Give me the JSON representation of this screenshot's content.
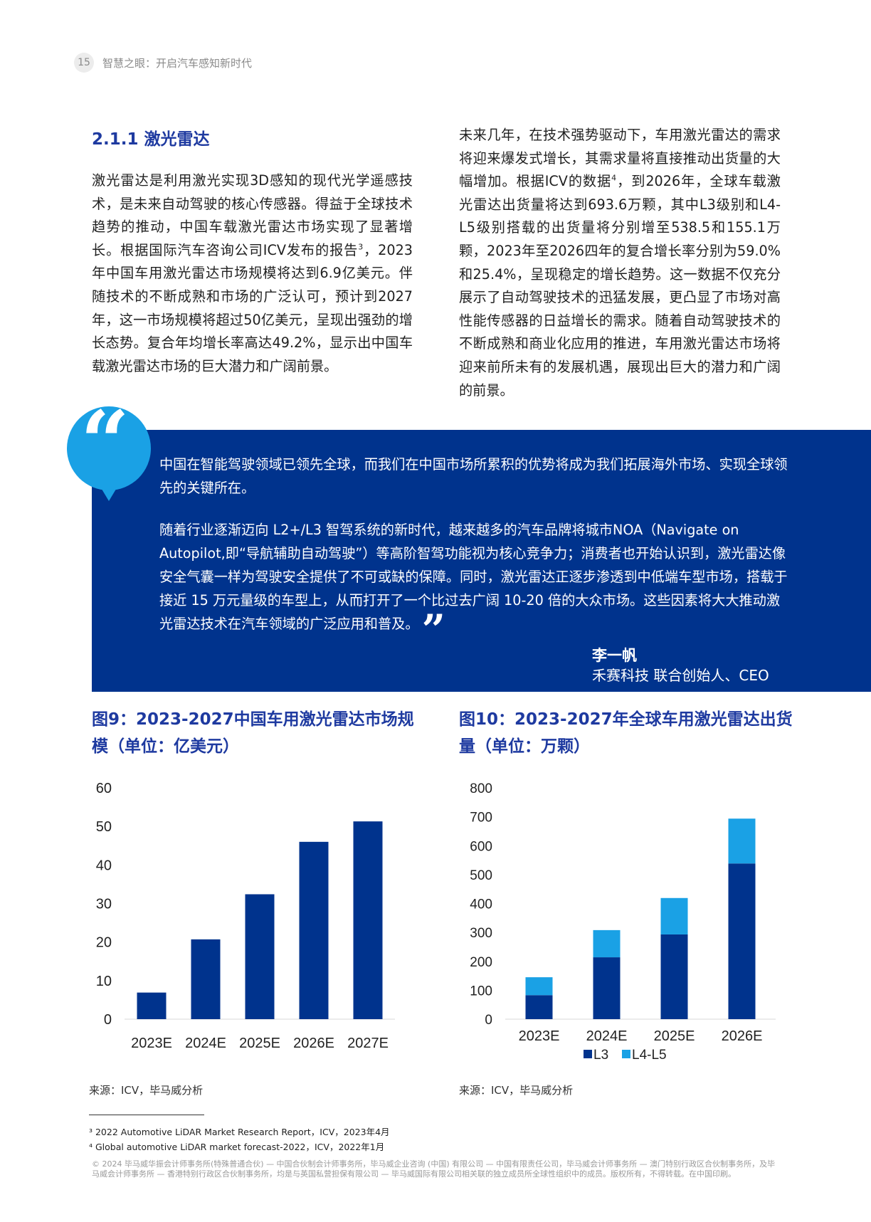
{
  "header": {
    "page_number": "15",
    "title": "智慧之眼：开启汽车感知新时代"
  },
  "section": {
    "title": "2.1.1 激光雷达",
    "left_paragraph": {
      "part1": "激光雷达是利用激光实现3D感知的现代光学遥感技术，是未来自动驾驶的核心传感器。得益于全球技术趋势的推动，中国车载激光雷达市场实现了显著增长。根据国际汽车咨询公司ICV发布的报告",
      "sup": "3",
      "part2": "，2023年中国车用激光雷达市场规模将达到6.9亿美元。伴随技术的不断成熟和市场的广泛认可，预计到2027年，这一市场规模将超过50亿美元，呈现出强劲的增长态势。复合年均增长率高达49.2%，显示出中国车载激光雷达市场的巨大潜力和广阔前景。"
    },
    "right_paragraph": {
      "part1": "未来几年，在技术强势驱动下，车用激光雷达的需求将迎来爆发式增长，其需求量将直接推动出货量的大幅增加。根据ICV的数据",
      "sup": "4",
      "part2": "，到2026年，全球车载激光雷达出货量将达到693.6万颗，其中L3级别和L4-L5级别搭载的出货量将分别增至538.5和155.1万颗，2023年至2026四年的复合增长率分别为59.0%和25.4%，呈现稳定的增长趋势。这一数据不仅充分展示了自动驾驶技术的迅猛发展，更凸显了市场对高性能传感器的日益增长的需求。随着自动驾驶技术的不断成熟和商业化应用的推进，车用激光雷达市场将迎来前所未有的发展机遇，展现出巨大的潜力和广阔的前景。"
    }
  },
  "quote": {
    "open_mark": "“",
    "close_mark": "”",
    "paragraph1": "中国在智能驾驶领域已领先全球，而我们在中国市场所累积的优势将成为我们拓展海外市场、实现全球领先的关键所在。",
    "paragraph2": "随着行业逐渐迈向 L2+/L3 智驾系统的新时代，越来越多的汽车品牌将城市NOA（Navigate on Autopilot,即“导航辅助自动驾驶”）等高阶智驾功能视为核心竞争力；消费者也开始认识到，激光雷达像安全气囊一样为驾驶安全提供了不可或缺的保障。同时，激光雷达正逐步渗透到中低端车型市场，搭载于接近 15 万元量级的车型上，从而打开了一个比过去广阔 10-20 倍的大众市场。这些因素将大大推动激光雷达技术在汽车领域的广泛应用和普及。",
    "author": "李一帆",
    "role": "禾赛科技 联合创始人、CEO"
  },
  "figures": {
    "fig9_title": "图9：2023-2027中国车用激光雷达市场规模（单位：亿美元）",
    "fig10_title": "图10：2023-2027年全球车用激光雷达出货量（单位：万颗）",
    "fig9_source": "来源：ICV，毕马威分析",
    "fig10_source": "来源：ICV，毕马威分析"
  },
  "footnotes": {
    "n1": "³ 2022 Automotive LiDAR Market Research Report，ICV，2023年4月",
    "n2": "⁴ Global automotive LiDAR market forecast-2022，ICV，2022年1月",
    "copyright": "© 2024 毕马威华振会计师事务所(特殊普通合伙) — 中国合伙制会计师事务所，毕马威企业咨询 (中国) 有限公司 — 中国有限责任公司，毕马威会计师事务所 — 澳门特别行政区合伙制事务所，及毕马威会计师事务所 — 香港特别行政区合伙制事务所，均是与英国私营担保有限公司 — 毕马威国际有限公司相关联的独立成员所全球性组织中的成员。版权所有，不得转载。在中国印刷。"
  },
  "colors": {
    "dark_blue": "#00338d",
    "light_blue": "#1aa1e5",
    "title_blue": "#1e3aa0"
  },
  "chart_data": [
    {
      "type": "bar",
      "title": "图9：2023-2027中国车用激光雷达市场规模（单位：亿美元）",
      "categories": [
        "2023E",
        "2024E",
        "2025E",
        "2026E",
        "2027E"
      ],
      "values": [
        6.9,
        20.7,
        32.4,
        46.0,
        51.3
      ],
      "ylim": [
        0,
        60
      ],
      "yticks": [
        0,
        10,
        20,
        30,
        40,
        50,
        60
      ],
      "xlabel": "",
      "ylabel": "",
      "color": "#00338d"
    },
    {
      "type": "bar",
      "stacked": true,
      "title": "图10：2023-2027年全球车用激光雷达出货量（单位：万颗）",
      "categories": [
        "2023E",
        "2024E",
        "2025E",
        "2026E"
      ],
      "series": [
        {
          "name": "L3",
          "values": [
            83,
            214,
            293,
            538.5
          ],
          "color": "#00338d"
        },
        {
          "name": "L4-L5",
          "values": [
            62,
            94,
            126,
            155.1
          ],
          "color": "#1aa1e5"
        }
      ],
      "ylim": [
        0,
        800
      ],
      "yticks": [
        0,
        100,
        200,
        300,
        400,
        500,
        600,
        700,
        800
      ],
      "legend": "bottom"
    }
  ]
}
